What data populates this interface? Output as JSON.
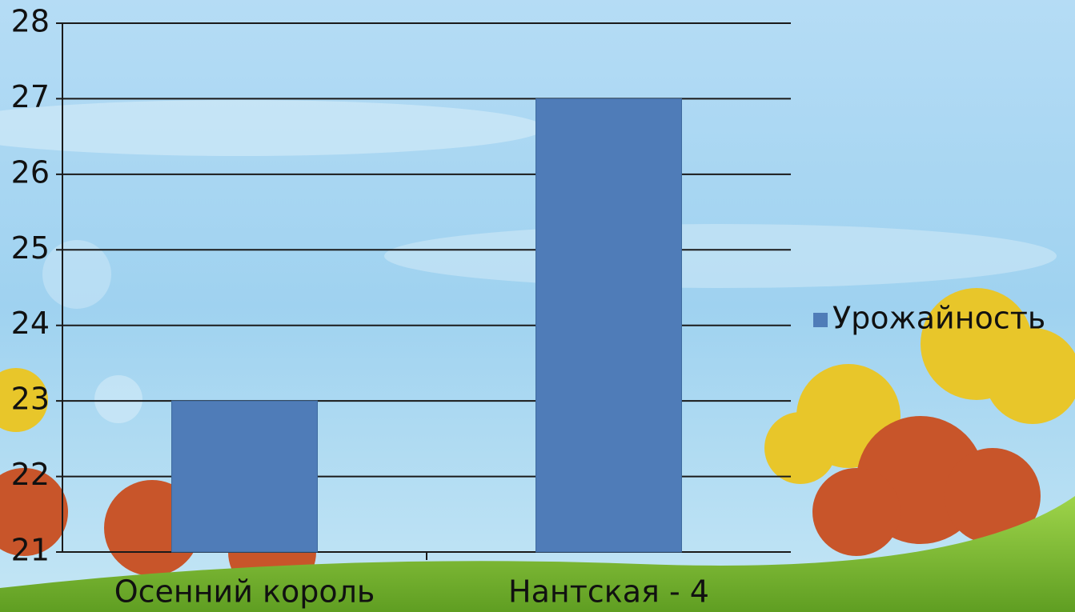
{
  "chart_data": {
    "type": "bar",
    "categories": [
      "Осенний король",
      "Нантская - 4"
    ],
    "series": [
      {
        "name": "Урожайность",
        "color": "#4f7cb8",
        "values": [
          23,
          27
        ]
      }
    ],
    "ylim": [
      21,
      28
    ],
    "yticks": [
      21,
      22,
      23,
      24,
      25,
      26,
      27,
      28
    ],
    "grid": true,
    "legend": "right"
  }
}
